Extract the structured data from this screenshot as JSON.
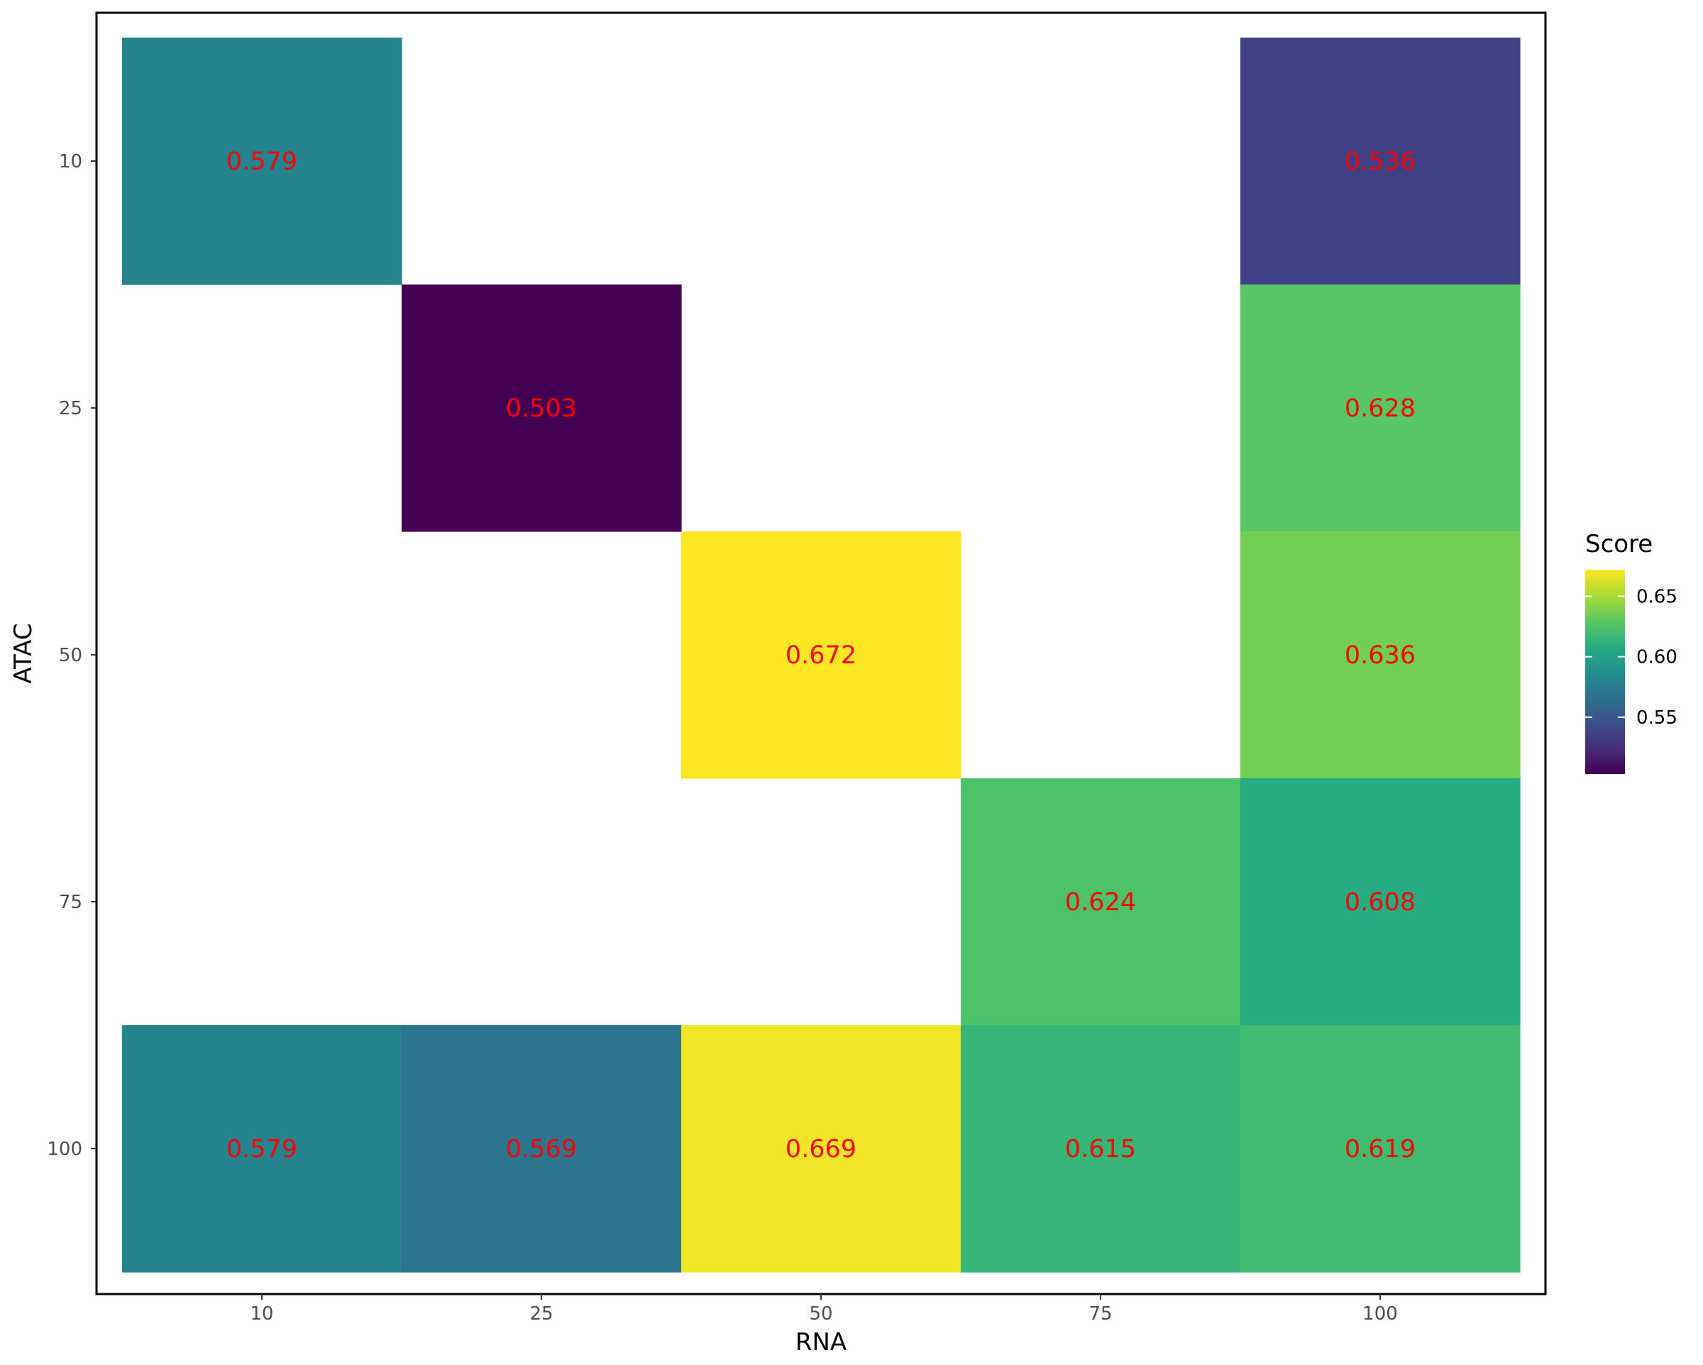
{
  "chart_data": {
    "type": "heatmap",
    "xlabel": "RNA",
    "ylabel": "ATAC",
    "x_categories": [
      "10",
      "25",
      "50",
      "75",
      "100"
    ],
    "y_categories": [
      "10",
      "25",
      "50",
      "75",
      "100"
    ],
    "cells": [
      {
        "x": "10",
        "y": "10",
        "value": 0.579,
        "label": "0.579"
      },
      {
        "x": "100",
        "y": "10",
        "value": 0.536,
        "label": "0.536"
      },
      {
        "x": "25",
        "y": "25",
        "value": 0.503,
        "label": "0.503"
      },
      {
        "x": "100",
        "y": "25",
        "value": 0.628,
        "label": "0.628"
      },
      {
        "x": "50",
        "y": "50",
        "value": 0.672,
        "label": "0.672"
      },
      {
        "x": "100",
        "y": "50",
        "value": 0.636,
        "label": "0.636"
      },
      {
        "x": "75",
        "y": "75",
        "value": 0.624,
        "label": "0.624"
      },
      {
        "x": "100",
        "y": "75",
        "value": 0.608,
        "label": "0.608"
      },
      {
        "x": "10",
        "y": "100",
        "value": 0.579,
        "label": "0.579"
      },
      {
        "x": "25",
        "y": "100",
        "value": 0.569,
        "label": "0.569"
      },
      {
        "x": "50",
        "y": "100",
        "value": 0.669,
        "label": "0.669"
      },
      {
        "x": "75",
        "y": "100",
        "value": 0.615,
        "label": "0.615"
      },
      {
        "x": "100",
        "y": "100",
        "value": 0.619,
        "label": "0.619"
      }
    ],
    "label_color": "#ff0000",
    "colorscale": "viridis",
    "legend": {
      "title": "Score",
      "position": "right",
      "range": [
        0.503,
        0.672
      ],
      "ticks": [
        {
          "value": 0.55,
          "label": "0.55"
        },
        {
          "value": 0.6,
          "label": "0.60"
        },
        {
          "value": 0.65,
          "label": "0.65"
        }
      ]
    },
    "grid": false,
    "panel_border": true
  }
}
